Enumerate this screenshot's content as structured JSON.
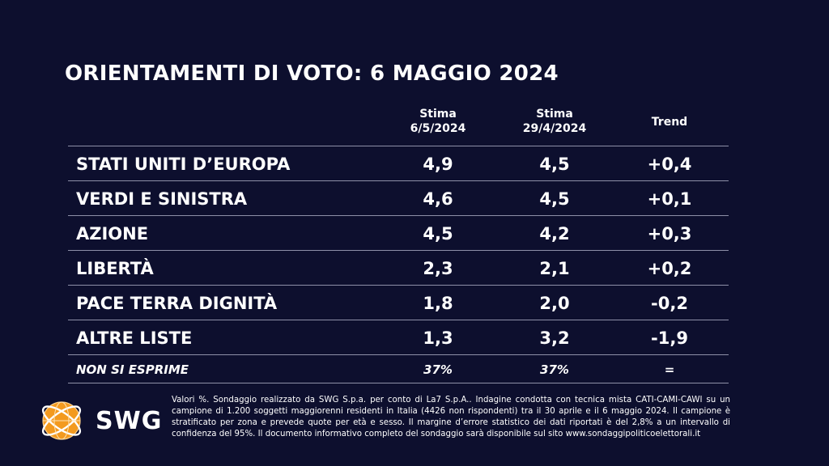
{
  "title": "ORIENTAMENTI DI VOTO: 6 MAGGIO 2024",
  "columns": {
    "estimate_current": [
      "Stima",
      "6/5/2024"
    ],
    "estimate_previous": [
      "Stima",
      "29/4/2024"
    ],
    "trend": "Trend"
  },
  "chart_data": {
    "type": "table",
    "title": "ORIENTAMENTI DI VOTO: 6 MAGGIO 2024",
    "columns": [
      "Stima 6/5/2024",
      "Stima 29/4/2024",
      "Trend"
    ],
    "rows": [
      {
        "party": "STATI UNITI D’EUROPA",
        "current": "4,9",
        "previous": "4,5",
        "trend": "+0,4"
      },
      {
        "party": "VERDI E SINISTRA",
        "current": "4,6",
        "previous": "4,5",
        "trend": "+0,1"
      },
      {
        "party": "AZIONE",
        "current": "4,5",
        "previous": "4,2",
        "trend": "+0,3"
      },
      {
        "party": "LIBERTÀ",
        "current": "2,3",
        "previous": "2,1",
        "trend": "+0,2"
      },
      {
        "party": "PACE TERRA DIGNITÀ",
        "current": "1,8",
        "previous": "2,0",
        "trend": "-0,2"
      },
      {
        "party": "ALTRE LISTE",
        "current": "1,3",
        "previous": "3,2",
        "trend": "-1,9"
      },
      {
        "party": "NON SI ESPRIME",
        "current": "37%",
        "previous": "37%",
        "trend": "="
      }
    ]
  },
  "logo": {
    "text": "SWG",
    "colors": {
      "orange": "#f39a1f",
      "white": "#ffffff"
    }
  },
  "footnote": "Valori %. Sondaggio realizzato da SWG S.p.a. per conto di La7 S.p.A.. Indagine condotta con tecnica mista CATI-CAMI-CAWI su un campione di 1.200 soggetti maggiorenni residenti in Italia (4426 non rispondenti) tra il 30 aprile e il 6 maggio 2024. Il campione è stratificato per zona e prevede quote per età e sesso. Il margine d’errore statistico dei dati riportati è del 2,8% a un intervallo di confidenza del 95%. Il documento informativo completo del sondaggio sarà disponibile sul sito www.sondaggipoliticoelettorali.it",
  "colors": {
    "background": "#0d0f2e",
    "text": "#ffffff",
    "rule": "#8e90a8"
  }
}
